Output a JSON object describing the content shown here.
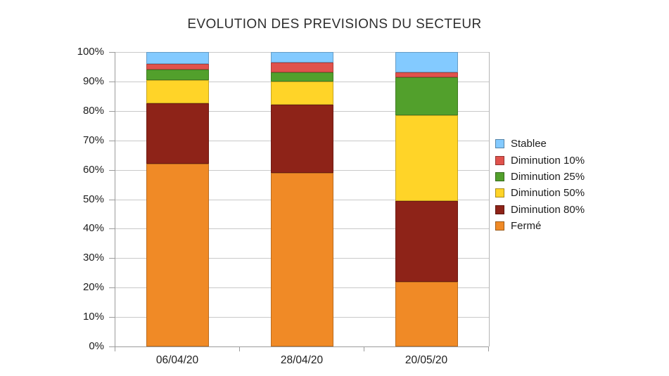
{
  "chart_data": {
    "type": "bar",
    "stacked": true,
    "orientation": "vertical",
    "title": "EVOLUTION DES PREVISIONS DU SECTEUR",
    "categories": [
      "06/04/20",
      "28/04/20",
      "20/05/20"
    ],
    "series": [
      {
        "name": "Stablee",
        "color": "#83CAFF",
        "values": [
          4,
          3.5,
          7
        ]
      },
      {
        "name": "Diminution 10%",
        "color": "#E0524C",
        "values": [
          2,
          3.5,
          1.5
        ]
      },
      {
        "name": "Diminution 25%",
        "color": "#52A02C",
        "values": [
          3.5,
          3,
          13
        ]
      },
      {
        "name": "Diminution 50%",
        "color": "#FFD428",
        "values": [
          8,
          8,
          29
        ]
      },
      {
        "name": "Diminution 80%",
        "color": "#8E2318",
        "values": [
          20.5,
          23,
          27.5
        ]
      },
      {
        "name": "Fermé",
        "color": "#F08A26",
        "values": [
          62,
          59,
          22
        ]
      }
    ],
    "xlabel": "",
    "ylabel": "",
    "ylim": [
      0,
      100
    ],
    "y_ticks": [
      "100%",
      "90%",
      "80%",
      "70%",
      "60%",
      "50%",
      "40%",
      "30%",
      "20%",
      "10%",
      "0%"
    ],
    "grid": true,
    "legend_position": "right",
    "background_color": "#ffffff",
    "gridline_color": "#c9c9c9",
    "axis_color": "#9b9b9b"
  }
}
